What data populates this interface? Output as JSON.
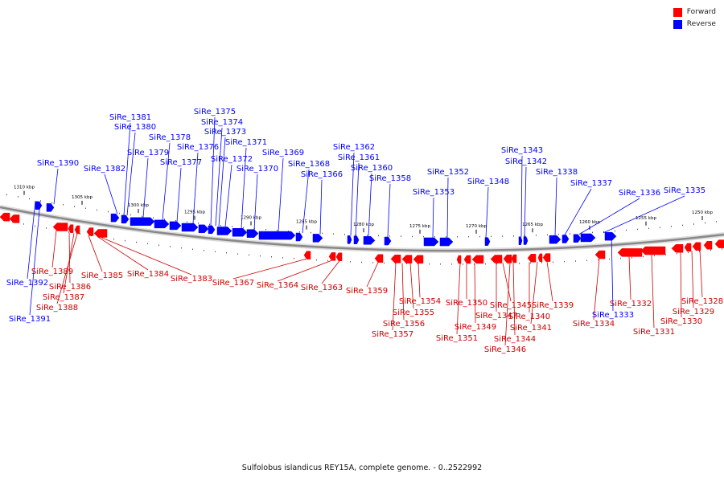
{
  "legend": {
    "items": [
      {
        "label": "Forward",
        "color": "#ff0000"
      },
      {
        "label": "Reverse",
        "color": "#0000ff"
      }
    ]
  },
  "caption": "Sulfolobus islandicus REY15A, complete genome. - 0..2522992",
  "colors": {
    "forward": "#ff0000",
    "forward_dark": "#cc0000",
    "reverse": "#0000ff",
    "reverse_dark": "#0000cc",
    "backbone": "#888888"
  },
  "scale": {
    "unit": "kbp",
    "ticks": [
      1310,
      1305,
      1300,
      1295,
      1290,
      1285,
      1280,
      1275,
      1270,
      1265,
      1260,
      1255,
      1250
    ]
  },
  "genes_reverse": [
    {
      "name": "SiRe_1390"
    },
    {
      "name": "SiRe_1382"
    },
    {
      "name": "SiRe_1381"
    },
    {
      "name": "SiRe_1380"
    },
    {
      "name": "SiRe_1379"
    },
    {
      "name": "SiRe_1378"
    },
    {
      "name": "SiRe_1377"
    },
    {
      "name": "SiRe_1376"
    },
    {
      "name": "SiRe_1375"
    },
    {
      "name": "SiRe_1374"
    },
    {
      "name": "SiRe_1373"
    },
    {
      "name": "SiRe_1372"
    },
    {
      "name": "SiRe_1371"
    },
    {
      "name": "SiRe_1370"
    },
    {
      "name": "SiRe_1369"
    },
    {
      "name": "SiRe_1368"
    },
    {
      "name": "SiRe_1366"
    },
    {
      "name": "SiRe_1362"
    },
    {
      "name": "SiRe_1361"
    },
    {
      "name": "SiRe_1360"
    },
    {
      "name": "SiRe_1358"
    },
    {
      "name": "SiRe_1353"
    },
    {
      "name": "SiRe_1352"
    },
    {
      "name": "SiRe_1348"
    },
    {
      "name": "SiRe_1343"
    },
    {
      "name": "SiRe_1342"
    },
    {
      "name": "SiRe_1338"
    },
    {
      "name": "SiRe_1337"
    },
    {
      "name": "SiRe_1336"
    },
    {
      "name": "SiRe_1335"
    },
    {
      "name": "SiRe_1392"
    },
    {
      "name": "SiRe_1391"
    },
    {
      "name": "SiRe_1333"
    }
  ],
  "genes_forward": [
    {
      "name": "SiRe_1389"
    },
    {
      "name": "SiRe_1386"
    },
    {
      "name": "SiRe_1387"
    },
    {
      "name": "SiRe_1388"
    },
    {
      "name": "SiRe_1385"
    },
    {
      "name": "SiRe_1384"
    },
    {
      "name": "SiRe_1383"
    },
    {
      "name": "SiRe_1367"
    },
    {
      "name": "SiRe_1364"
    },
    {
      "name": "SiRe_1363"
    },
    {
      "name": "SiRe_1359"
    },
    {
      "name": "SiRe_1354"
    },
    {
      "name": "SiRe_1355"
    },
    {
      "name": "SiRe_1356"
    },
    {
      "name": "SiRe_1357"
    },
    {
      "name": "SiRe_1350"
    },
    {
      "name": "SiRe_1349"
    },
    {
      "name": "SiRe_1351"
    },
    {
      "name": "SiRe_1347"
    },
    {
      "name": "SiRe_1345"
    },
    {
      "name": "SiRe_1344"
    },
    {
      "name": "SiRe_1346"
    },
    {
      "name": "SiRe_1340"
    },
    {
      "name": "SiRe_1341"
    },
    {
      "name": "SiRe_1339"
    },
    {
      "name": "SiRe_1334"
    },
    {
      "name": "SiRe_1332"
    },
    {
      "name": "SiRe_1331"
    },
    {
      "name": "SiRe_1330"
    },
    {
      "name": "SiRe_1329"
    },
    {
      "name": "SiRe_1328"
    }
  ]
}
